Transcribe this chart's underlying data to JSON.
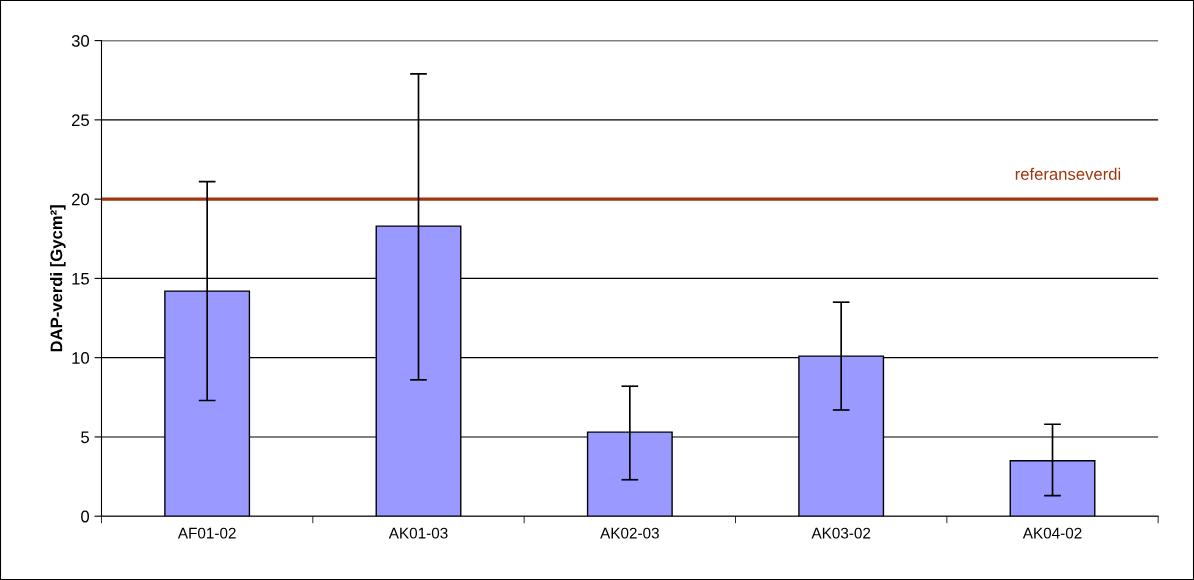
{
  "chart_data": {
    "type": "bar",
    "ylabel": "DAP-verdi [Gycm²]",
    "categories": [
      "AF01-02",
      "AK01-03",
      "AK02-03",
      "AK03-02",
      "AK04-02"
    ],
    "values": [
      14.2,
      18.3,
      5.3,
      10.1,
      3.5
    ],
    "errors": [
      [
        7.3,
        21.1
      ],
      [
        8.6,
        27.9
      ],
      [
        2.3,
        8.2
      ],
      [
        6.7,
        13.5
      ],
      [
        1.3,
        5.8
      ]
    ],
    "color": "#9999ff",
    "ylim": [
      0,
      30
    ],
    "yticks": [
      0,
      5,
      10,
      15,
      20,
      25,
      30
    ],
    "grid": "y",
    "ref_lines": [
      {
        "axis": "y",
        "value": 20,
        "label": "referanseverdi",
        "color": "#a0360e"
      }
    ]
  }
}
